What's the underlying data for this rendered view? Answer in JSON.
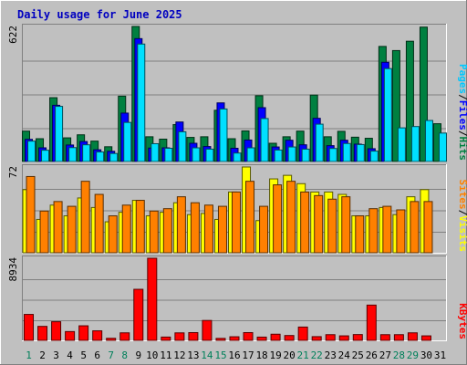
{
  "chart_data": [
    {
      "type": "bar",
      "title": "Daily usage for June 2025",
      "categories": [
        "1",
        "2",
        "3",
        "4",
        "5",
        "6",
        "7",
        "8",
        "9",
        "10",
        "11",
        "12",
        "13",
        "14",
        "15",
        "16",
        "17",
        "18",
        "19",
        "20",
        "21",
        "22",
        "23",
        "24",
        "25",
        "26",
        "27",
        "28",
        "29",
        "30",
        "31"
      ],
      "weekend_days": [
        "1",
        "7",
        "8",
        "14",
        "15",
        "21",
        "22",
        "28",
        "29"
      ],
      "panels": [
        {
          "id": "hits-files-pages",
          "ymax": 622,
          "ymax_label": "622",
          "axis_label_parts": [
            "Pages",
            "/",
            "Files",
            "/",
            "Hits"
          ],
          "series": [
            {
              "name": "Hits",
              "color": "#008040",
              "values": [
                140,
                105,
                294,
                109,
                123,
                94,
                68,
                301,
                622,
                114,
                103,
                170,
                111,
                114,
                236,
                105,
                141,
                303,
                84,
                114,
                140,
                306,
                114,
                139,
                112,
                107,
                530,
                511,
                554,
                619,
                174
              ]
            },
            {
              "name": "Files",
              "color": "#0000ff",
              "values": [
                102,
                63,
                259,
                76,
                92,
                54,
                47,
                223,
                566,
                62,
                63,
                182,
                84,
                69,
                270,
                61,
                99,
                248,
                67,
                98,
                77,
                199,
                73,
                98,
                80,
                59,
                457,
                0,
                0,
                0,
                0
              ]
            },
            {
              "name": "Pages",
              "color": "#00e0ff",
              "values": [
                94,
                52,
                254,
                64,
                77,
                44,
                37,
                180,
                541,
                82,
                61,
                137,
                63,
                57,
                242,
                39,
                63,
                198,
                53,
                67,
                57,
                172,
                60,
                83,
                78,
                48,
                428,
                155,
                161,
                189,
                131
              ]
            }
          ]
        },
        {
          "id": "visits-sites",
          "ymax": 72,
          "ymax_label": "72",
          "axis_label_parts": [
            "Sites",
            "/",
            "Visits"
          ],
          "series": [
            {
              "name": "Visits",
              "color": "#ffff00",
              "values": [
                53,
                28,
                40,
                31,
                46,
                38,
                26,
                34,
                44,
                31,
                34,
                42,
                32,
                33,
                28,
                51,
                72,
                27,
                62,
                65,
                58,
                51,
                51,
                49,
                31,
                31,
                38,
                32,
                47,
                53,
                0
              ]
            },
            {
              "name": "Sites",
              "color": "#ff8000",
              "values": [
                64,
                35,
                43,
                39,
                60,
                49,
                31,
                40,
                44,
                35,
                37,
                47,
                42,
                40,
                39,
                51,
                60,
                39,
                57,
                60,
                51,
                48,
                45,
                47,
                31,
                37,
                39,
                36,
                43,
                43,
                0
              ]
            }
          ]
        },
        {
          "id": "kbytes",
          "ymax": 8934,
          "ymax_label": "8934",
          "axis_label_parts": [
            "KBytes"
          ],
          "series": [
            {
              "name": "KBytes",
              "color": "#ff0000",
              "values": [
                2822,
                1520,
                2027,
                957,
                1584,
                1039,
                224,
                819,
                5555,
                8934,
                361,
                816,
                843,
                2165,
                215,
                392,
                843,
                355,
                670,
                526,
                1448,
                405,
                619,
                490,
                631,
                3837,
                619,
                619,
                819,
                490,
                0
              ]
            }
          ]
        }
      ]
    }
  ]
}
